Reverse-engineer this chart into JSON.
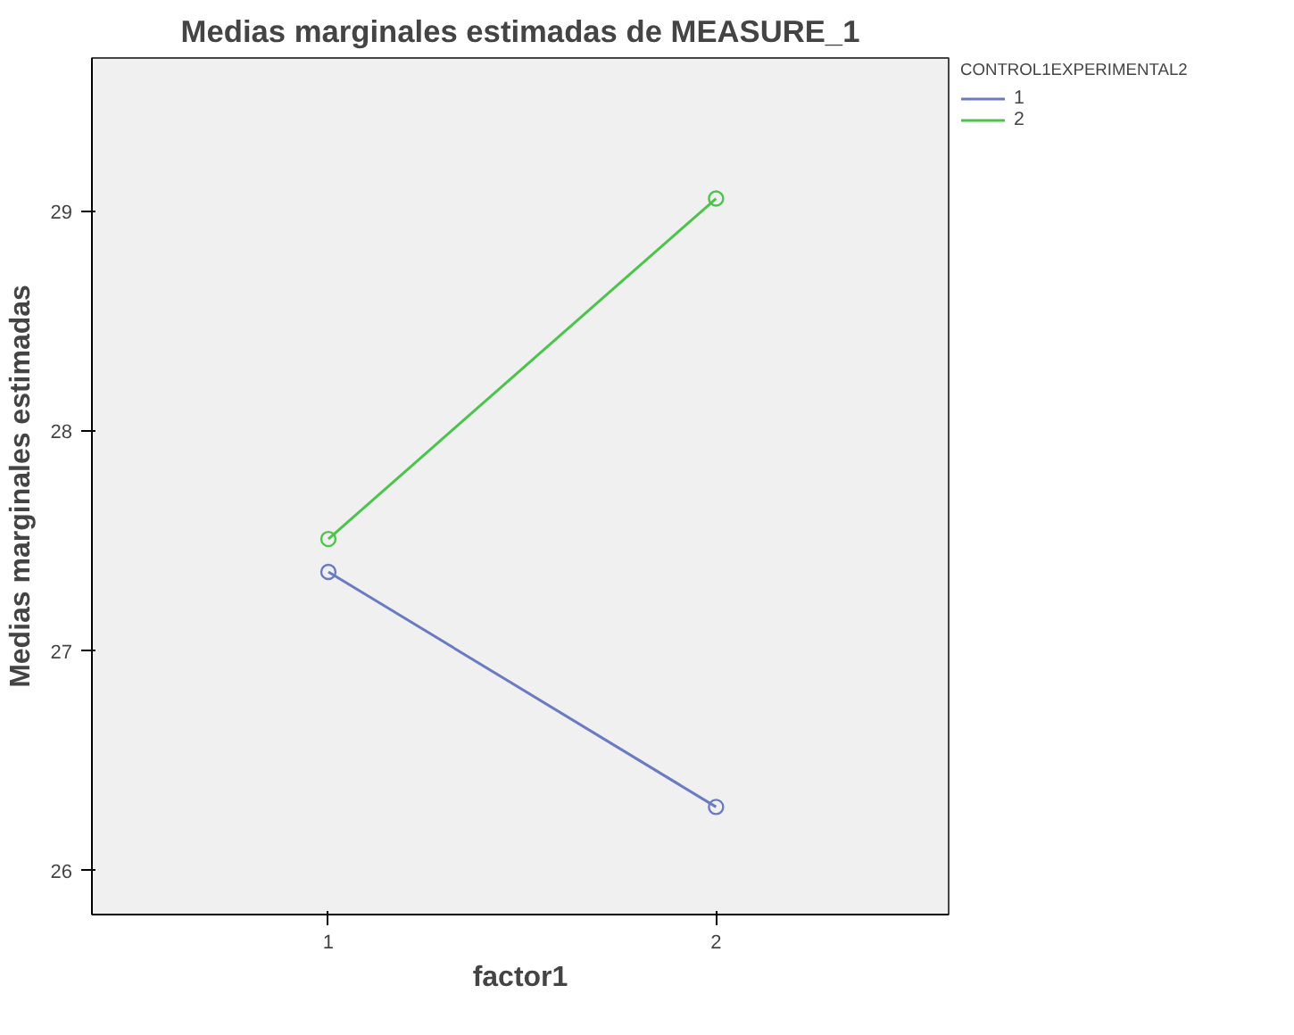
{
  "chart_data": {
    "type": "line",
    "title": "Medias marginales estimadas de MEASURE_1",
    "xlabel": "factor1",
    "ylabel": "Medias marginales estimadas",
    "legend_title": "CONTROL1EXPERIMENTAL2",
    "x": [
      1,
      2
    ],
    "xlim": [
      0.39,
      2.6
    ],
    "xticks": [
      1,
      2
    ],
    "ylim": [
      25.8,
      29.7
    ],
    "yticks": [
      26,
      27,
      28,
      29
    ],
    "series": [
      {
        "name": "1",
        "color": "#6a7bc4",
        "values": [
          27.36,
          26.29
        ]
      },
      {
        "name": "2",
        "color": "#4cc44c",
        "values": [
          27.51,
          29.06
        ]
      }
    ],
    "marker": "circle",
    "grid": false,
    "legend": "top right"
  }
}
